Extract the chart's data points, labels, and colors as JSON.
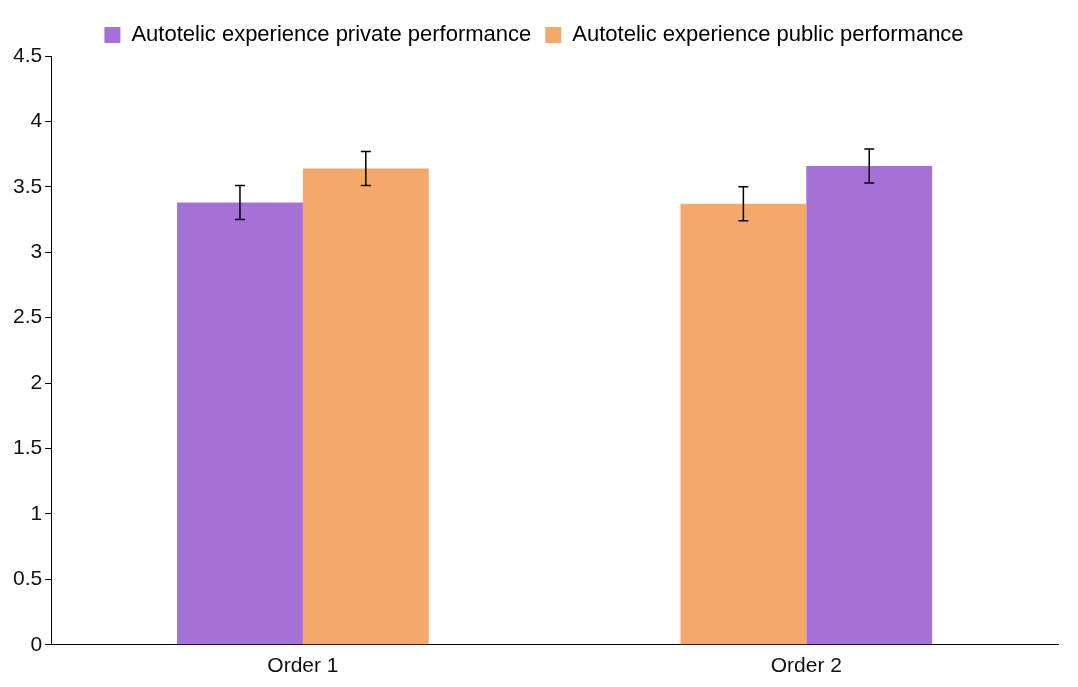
{
  "chart_data": {
    "type": "bar",
    "categories": [
      "Order 1",
      "Order 2"
    ],
    "series": [
      {
        "name": "Autotelic experience private performance",
        "color": "#a571d6",
        "values": [
          3.38,
          3.66
        ],
        "errors": [
          0.13,
          0.13
        ]
      },
      {
        "name": "Autotelic experience public performance",
        "color": "#f4a86a",
        "values": [
          3.64,
          3.37
        ],
        "errors": [
          0.13,
          0.13
        ]
      }
    ],
    "ylim": [
      0,
      4.5
    ],
    "yticks": [
      0,
      0.5,
      1,
      1.5,
      2,
      2.5,
      3,
      3.5,
      4,
      4.5
    ],
    "grid": false,
    "legend": "top"
  }
}
